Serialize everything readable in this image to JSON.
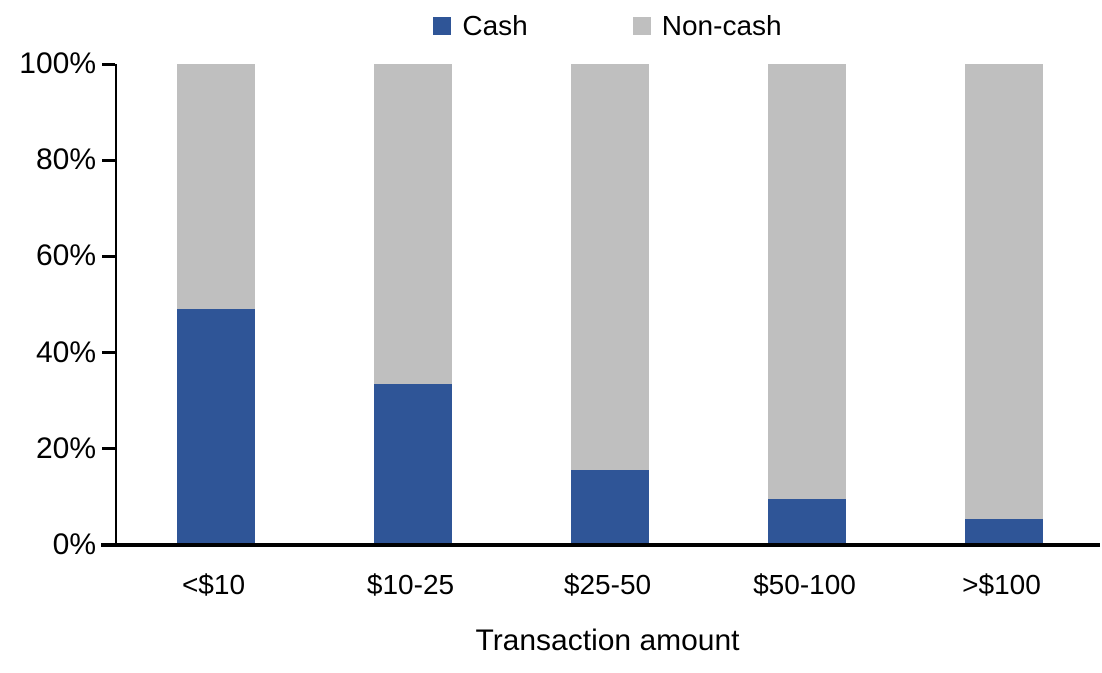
{
  "colors": {
    "cash": "#2F5597",
    "noncash": "#BFBFBF",
    "axis": "#000000",
    "background": "#FFFFFF"
  },
  "chart_data": {
    "type": "bar",
    "stacked": true,
    "percent_stacked": true,
    "title": "",
    "xlabel": "Transaction amount",
    "ylabel": "",
    "categories": [
      "<$10",
      "$10-25",
      "$25-50",
      "$50-100",
      ">$100"
    ],
    "series": [
      {
        "name": "Cash",
        "color": "#2F5597",
        "values": [
          49,
          33.5,
          15.5,
          9.5,
          5.5
        ]
      },
      {
        "name": "Non-cash",
        "color": "#BFBFBF",
        "values": [
          51,
          66.5,
          84.5,
          90.5,
          94.5
        ]
      }
    ],
    "ylim": [
      0,
      100
    ],
    "y_ticks": [
      "0%",
      "20%",
      "40%",
      "60%",
      "80%",
      "100%"
    ],
    "grid": false,
    "legend_position": "top-center"
  }
}
